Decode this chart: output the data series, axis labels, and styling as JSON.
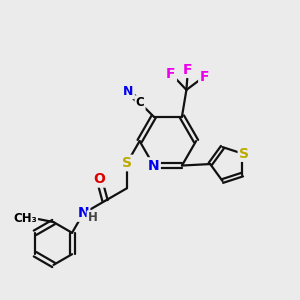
{
  "background_color": "#ebebeb",
  "figsize": [
    3.0,
    3.0
  ],
  "dpi": 100,
  "atom_colors": {
    "C": "#000000",
    "N": "#0000ee",
    "O": "#dd0000",
    "S": "#bbaa00",
    "F": "#ee00ee",
    "H": "#444444"
  },
  "bond_color": "#111111",
  "bond_width": 1.6,
  "font_size_atom": 10,
  "font_size_small": 8.5
}
